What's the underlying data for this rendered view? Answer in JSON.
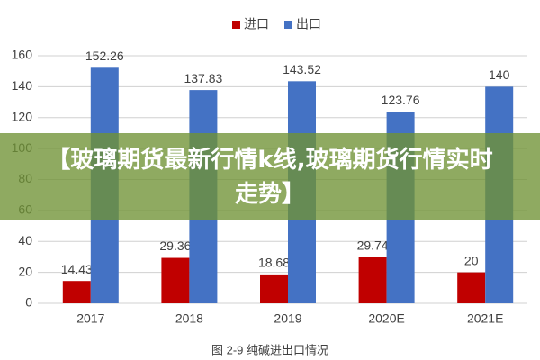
{
  "chart_data": {
    "type": "bar",
    "caption": "图 2-9 纯碱进出口情况",
    "categories": [
      "2017",
      "2018",
      "2019",
      "2020E",
      "2021E"
    ],
    "series": [
      {
        "name": "进口",
        "color": "#c00000",
        "values": [
          14.43,
          29.36,
          18.68,
          29.74,
          20
        ]
      },
      {
        "name": "出口",
        "color": "#4472c4",
        "values": [
          152.26,
          137.83,
          143.52,
          123.76,
          140
        ]
      }
    ],
    "ylim": [
      0,
      160
    ],
    "yticks": [
      0,
      20,
      40,
      60,
      80,
      100,
      120,
      140,
      160
    ],
    "grid": true,
    "legend": "top"
  },
  "banner": {
    "text": "【玻璃期货最新行情k线,玻璃期货行情实时走势】"
  }
}
